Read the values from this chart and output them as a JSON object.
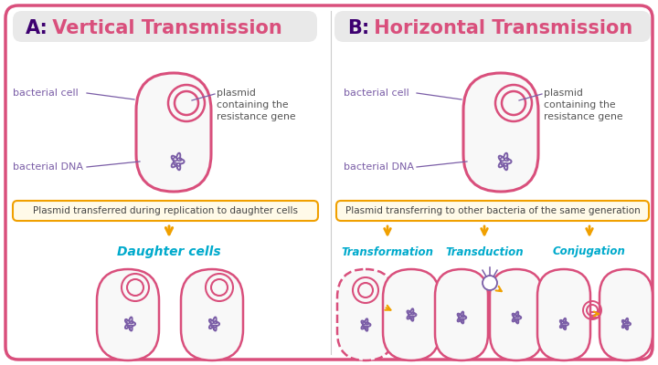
{
  "bg_color": "#ffffff",
  "outer_border_color": "#d94f7c",
  "cell_border_color": "#d94f7c",
  "cell_fill": "#f8f8f8",
  "plasmid_color": "#d94f7c",
  "dna_color": "#7b5ea7",
  "label_color": "#7b5ea7",
  "title_dark_color": "#3d0070",
  "title_red_color": "#d94f7c",
  "arrow_color": "#f0a000",
  "subtype_color": "#00aacc",
  "box_border_color": "#f0a000",
  "box_fill_color": "#fffae8",
  "text_vertical": "Plasmid transferred during replication to daughter cells",
  "text_horizontal": "Plasmid transferring to other bacteria of the same generation",
  "label_bacterial_cell": "bacterial cell",
  "label_bacterial_dna": "bacterial DNA",
  "label_plasmid": "plasmid\ncontaining the\nresistance gene",
  "label_daughter": "Daughter cells",
  "label_transformation": "Transformation",
  "label_transduction": "Transduction",
  "label_conjugation": "Conjugation",
  "title_a_letter": "A:",
  "title_a_text": " Vertical Transmission",
  "title_b_letter": "B:",
  "title_b_text": " Horizontal Transmission"
}
